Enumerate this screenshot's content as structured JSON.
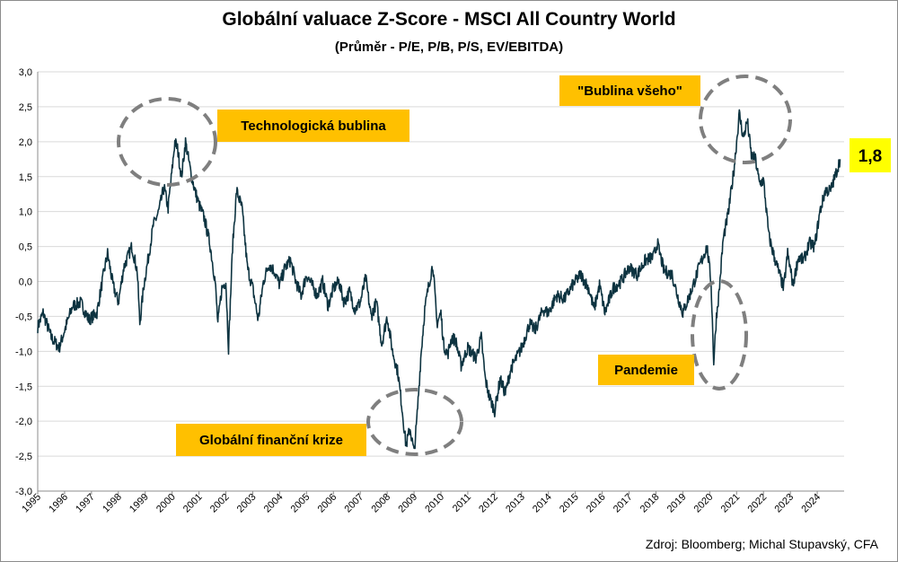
{
  "chart_data": {
    "type": "line",
    "title": "Globální valuace Z-Score - MSCI All Country World",
    "subtitle": "(Průměr - P/E, P/B, P/S, EV/EBITDA)",
    "xlabel": "",
    "ylabel": "",
    "ylim": [
      -3.0,
      3.0
    ],
    "ytick_labels": [
      "-3,0",
      "-2,5",
      "-2,0",
      "-1,5",
      "-1,0",
      "-0,5",
      "0,0",
      "0,5",
      "1,0",
      "1,5",
      "2,0",
      "2,5",
      "3,0"
    ],
    "ytick_values": [
      -3.0,
      -2.5,
      -2.0,
      -1.5,
      -1.0,
      -0.5,
      0.0,
      0.5,
      1.0,
      1.5,
      2.0,
      2.5,
      3.0
    ],
    "xlim": [
      1995.0,
      2025.0
    ],
    "xtick_labels": [
      "1995",
      "1996",
      "1997",
      "1998",
      "1999",
      "2000",
      "2001",
      "2002",
      "2003",
      "2004",
      "2005",
      "2006",
      "2007",
      "2008",
      "2009",
      "2010",
      "2011",
      "2012",
      "2013",
      "2014",
      "2015",
      "2016",
      "2017",
      "2018",
      "2019",
      "2020",
      "2021",
      "2022",
      "2023",
      "2024"
    ],
    "grid": "horizontal",
    "line_color": "#0d3340",
    "series": [
      {
        "name": "",
        "x": [
          1995.0,
          1995.2,
          1995.5,
          1995.8,
          1996.0,
          1996.3,
          1996.6,
          1996.9,
          1997.2,
          1997.45,
          1997.6,
          1997.8,
          1998.0,
          1998.2,
          1998.5,
          1998.7,
          1998.8,
          1998.95,
          1999.1,
          1999.3,
          1999.5,
          1999.7,
          1999.85,
          2000.0,
          2000.1,
          2000.2,
          2000.35,
          2000.5,
          2000.7,
          2000.85,
          2001.0,
          2001.2,
          2001.4,
          2001.6,
          2001.7,
          2001.85,
          2002.0,
          2002.1,
          2002.25,
          2002.4,
          2002.6,
          2002.8,
          2003.0,
          2003.2,
          2003.4,
          2003.6,
          2003.8,
          2004.0,
          2004.2,
          2004.4,
          2004.6,
          2004.8,
          2005.0,
          2005.2,
          2005.4,
          2005.6,
          2005.8,
          2006.0,
          2006.2,
          2006.4,
          2006.6,
          2006.8,
          2007.0,
          2007.2,
          2007.4,
          2007.6,
          2007.8,
          2008.0,
          2008.2,
          2008.4,
          2008.55,
          2008.7,
          2008.85,
          2009.0,
          2009.1,
          2009.25,
          2009.4,
          2009.55,
          2009.7,
          2009.85,
          2010.0,
          2010.1,
          2010.25,
          2010.4,
          2010.55,
          2010.75,
          2011.0,
          2011.3,
          2011.5,
          2011.65,
          2011.8,
          2012.0,
          2012.2,
          2012.4,
          2012.6,
          2012.8,
          2013.0,
          2013.3,
          2013.5,
          2013.8,
          2014.0,
          2014.3,
          2014.6,
          2014.9,
          2015.2,
          2015.5,
          2015.7,
          2015.9,
          2016.1,
          2016.4,
          2016.7,
          2017.0,
          2017.3,
          2017.6,
          2017.9,
          2018.05,
          2018.3,
          2018.6,
          2018.8,
          2019.0,
          2019.3,
          2019.6,
          2019.9,
          2020.05,
          2020.15,
          2020.25,
          2020.35,
          2020.5,
          2020.7,
          2020.9,
          2021.1,
          2021.25,
          2021.4,
          2021.55,
          2021.7,
          2021.85,
          2022.0,
          2022.2,
          2022.4,
          2022.6,
          2022.75,
          2022.9,
          2023.1,
          2023.3,
          2023.5,
          2023.7,
          2023.9,
          2024.1,
          2024.3,
          2024.5,
          2024.7,
          2024.85
        ],
        "y": [
          -0.65,
          -0.45,
          -0.8,
          -0.95,
          -0.7,
          -0.35,
          -0.3,
          -0.55,
          -0.45,
          0.1,
          0.4,
          -0.05,
          -0.3,
          0.2,
          0.5,
          0.15,
          -0.6,
          -0.05,
          0.3,
          0.8,
          1.0,
          1.35,
          1.05,
          1.6,
          2.0,
          1.9,
          1.5,
          2.0,
          1.55,
          1.3,
          1.1,
          0.9,
          0.55,
          0.0,
          -0.6,
          -0.1,
          0.0,
          -0.95,
          0.5,
          1.3,
          1.05,
          0.2,
          -0.1,
          -0.55,
          0.0,
          0.25,
          0.15,
          -0.05,
          0.2,
          0.3,
          0.0,
          -0.2,
          0.1,
          -0.05,
          -0.2,
          0.0,
          -0.35,
          -0.1,
          0.0,
          -0.3,
          -0.15,
          -0.4,
          -0.3,
          0.05,
          -0.5,
          -0.3,
          -0.9,
          -0.5,
          -1.0,
          -1.3,
          -1.8,
          -2.35,
          -2.1,
          -2.45,
          -2.0,
          -1.1,
          -0.4,
          -0.05,
          0.25,
          -0.6,
          -0.45,
          -0.9,
          -1.05,
          -0.8,
          -0.85,
          -1.2,
          -0.95,
          -1.1,
          -0.8,
          -1.4,
          -1.65,
          -1.85,
          -1.4,
          -1.6,
          -1.25,
          -1.1,
          -0.95,
          -0.6,
          -0.7,
          -0.4,
          -0.45,
          -0.2,
          -0.25,
          -0.05,
          0.1,
          -0.1,
          -0.4,
          -0.05,
          -0.45,
          -0.1,
          0.0,
          0.2,
          0.1,
          0.3,
          0.35,
          0.55,
          0.15,
          0.1,
          -0.2,
          -0.45,
          -0.15,
          0.2,
          0.5,
          0.0,
          -1.15,
          -0.5,
          -0.15,
          0.6,
          1.0,
          1.6,
          2.4,
          2.05,
          2.3,
          1.8,
          1.75,
          1.4,
          1.45,
          0.65,
          0.35,
          0.1,
          -0.1,
          0.4,
          -0.05,
          0.35,
          0.3,
          0.55,
          0.5,
          1.0,
          1.3,
          1.3,
          1.55,
          1.75
        ]
      }
    ],
    "annotations": [
      {
        "text": "Technologická bublina",
        "x": 2000.3,
        "y": 1.95,
        "radius_years": 1.8
      },
      {
        "text": "\"Bublina všeho\"",
        "x": 2021.1,
        "y": 2.25,
        "radius_years": 1.8
      },
      {
        "text": "Globální finanční krize",
        "x": 2009.3,
        "y": -2.2,
        "radius_years": 1.8
      },
      {
        "text": "Pandemie",
        "x": 2020.2,
        "y": -0.95,
        "radius_years": 1.0
      }
    ],
    "last_value_label": "1,8",
    "source": "Zdroj: Bloomberg; Michal Stupavský, CFA"
  }
}
